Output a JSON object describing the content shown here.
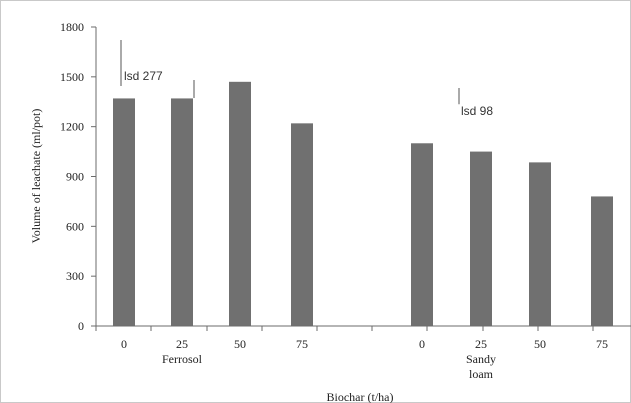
{
  "chart_data": {
    "type": "bar",
    "xlabel": "Biochar (t/ha)",
    "ylabel": "Volume of leachate (ml/pot)",
    "ylim": [
      0,
      1800
    ],
    "yticks": [
      0,
      300,
      600,
      900,
      1200,
      1500,
      1800
    ],
    "grid": false,
    "bar_color": "#707070",
    "groups": [
      {
        "name": "Ferrosol",
        "categories": [
          "0",
          "25",
          "50",
          "75"
        ],
        "values": [
          1370,
          1370,
          1470,
          1220
        ],
        "lsd": {
          "label": "lsd 277",
          "value": 277
        }
      },
      {
        "name": "Sandy loam",
        "categories": [
          "0",
          "25",
          "50",
          "75"
        ],
        "values": [
          1100,
          1050,
          985,
          780
        ],
        "lsd": {
          "label": "lsd 98",
          "value": 98
        }
      }
    ]
  }
}
